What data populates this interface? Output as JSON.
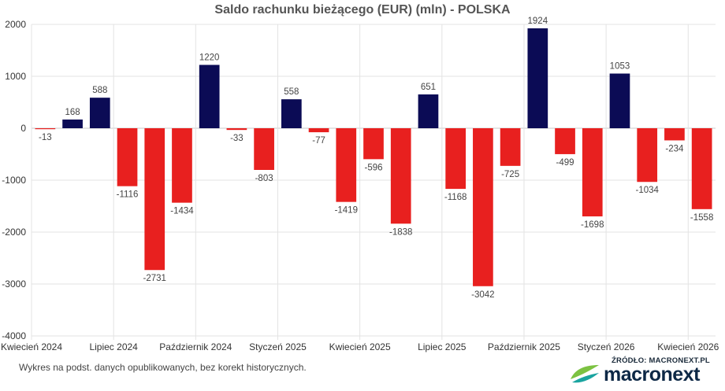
{
  "chart_data": {
    "type": "bar",
    "title": "Saldo rachunku bieżącego (EUR) (mln) - POLSKA",
    "xlabel": "",
    "ylabel": "",
    "ylim": [
      -4000,
      2000
    ],
    "yticks": [
      2000,
      1000,
      0,
      -1000,
      -2000,
      -3000,
      -4000
    ],
    "x_tick_labels": [
      "Kwiecień 2024",
      "Lipiec 2024",
      "Październik 2024",
      "Styczeń 2025",
      "Kwiecień 2025",
      "Lipiec 2025",
      "Październik 2025",
      "Styczeń 2026",
      "Kwiecień 2026"
    ],
    "grid": true,
    "colors": {
      "positive": "#0b0b55",
      "negative": "#e8201f"
    },
    "categories": [
      "2024-04",
      "2024-05",
      "2024-06",
      "2024-07",
      "2024-08",
      "2024-09",
      "2024-10",
      "2024-11",
      "2024-12",
      "2025-01",
      "2025-02",
      "2025-03",
      "2025-04",
      "2025-05",
      "2025-06",
      "2025-07",
      "2025-08",
      "2025-09",
      "2025-10",
      "2025-11",
      "2025-12",
      "2026-01",
      "2026-02",
      "2026-03",
      "2026-04"
    ],
    "values": [
      -13,
      168,
      588,
      -1116,
      -2731,
      -1434,
      1220,
      -33,
      -803,
      558,
      -77,
      -1419,
      -596,
      -1838,
      651,
      -1168,
      -3042,
      -725,
      1924,
      -499,
      -1698,
      1053,
      -1034,
      -234,
      -1558
    ],
    "labels": [
      "-13",
      "168",
      "588",
      "-1116",
      "-2731",
      "-1434",
      "1220",
      "-33",
      "-803",
      "558",
      "-77",
      "-1419",
      "-596",
      "-1838",
      "651",
      "-1168",
      "-3042",
      "-725",
      "1924",
      "-499",
      "-1698",
      "1053",
      "-1034",
      "-234",
      "-1558"
    ]
  },
  "footnote": "Wykres na podst. danych opublikowanych, bez korekt historycznych.",
  "logo": {
    "source_text": "ŹRÓDŁO: MACRONEXT.PL",
    "name": "macronext",
    "colors": {
      "text": "#0d2846",
      "mark_green": "#7cc242",
      "mark_teal": "#1aa4a0"
    }
  }
}
